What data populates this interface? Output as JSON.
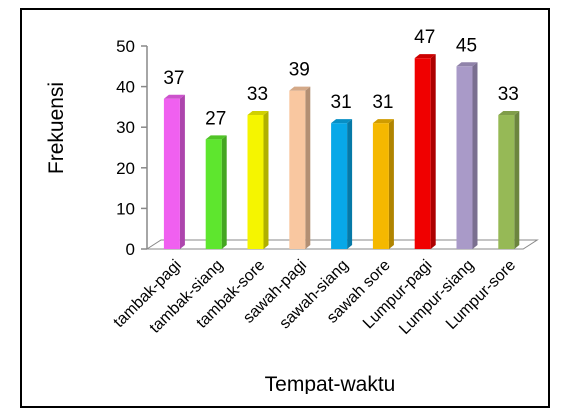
{
  "chart_data": {
    "type": "bar",
    "style": "3d-column",
    "categories": [
      "tambak-pagi",
      "tambak-siang",
      "tambak-sore",
      "sawah-pagi",
      "sawah-siang",
      "sawah sore",
      "Lumpur-pagi",
      "Lumpur-siang",
      "Lumpur-sore"
    ],
    "values": [
      37,
      27,
      33,
      39,
      31,
      31,
      47,
      45,
      33
    ],
    "data_labels": [
      "37",
      "27",
      "33",
      "39",
      "31",
      "31",
      "47",
      "45",
      "33"
    ],
    "colors": [
      "#f060f0",
      "#5ee62e",
      "#f5f500",
      "#f9c7a0",
      "#08a8e8",
      "#f5b800",
      "#f00000",
      "#a99ac8",
      "#96b956"
    ],
    "title": "",
    "xlabel": "Tempat-waktu",
    "ylabel": "Frekuensi",
    "ylim": [
      0,
      50
    ],
    "yticks": [
      0,
      10,
      20,
      30,
      40,
      50
    ],
    "ytick_labels": [
      "0",
      "10",
      "20",
      "30",
      "40",
      "50"
    ],
    "grid": false,
    "legend": "none"
  }
}
